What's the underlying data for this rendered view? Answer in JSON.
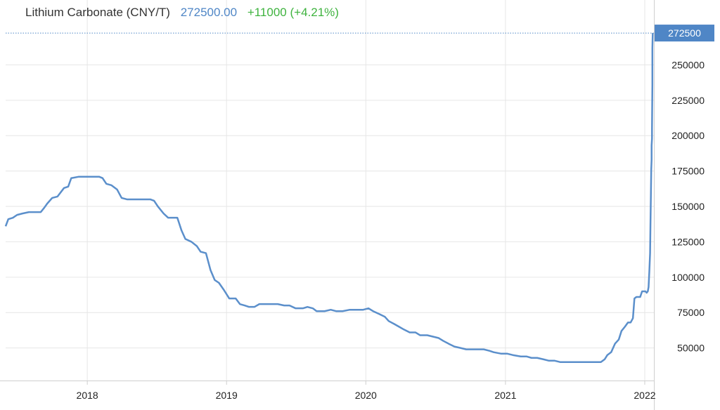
{
  "header": {
    "title": "Lithium Carbonate (CNY/T)",
    "price": "272500.00",
    "change": "+11000 (+4.21%)"
  },
  "colors": {
    "line": "#5b8fcb",
    "price": "#4f86c6",
    "change": "#3fb33f",
    "badge": "#4f86c6",
    "grid": "#e6e6e6"
  },
  "chart_data": {
    "type": "line",
    "title": "Lithium Carbonate (CNY/T)",
    "xlabel": "",
    "ylabel": "",
    "ylim": [
      27000,
      277000
    ],
    "xlim": [
      "2017-06-01",
      "2022-01-25"
    ],
    "grid": true,
    "y_axis_side": "right",
    "last_value_label": "272500",
    "x_ticks": [
      "2018",
      "2019",
      "2020",
      "2021",
      "2022"
    ],
    "x_tick_dates": [
      "2018-01-01",
      "2019-01-01",
      "2020-01-01",
      "2021-01-01",
      "2022-01-01"
    ],
    "y_ticks": [
      50000,
      75000,
      100000,
      125000,
      150000,
      175000,
      200000,
      225000,
      250000
    ],
    "series": [
      {
        "points": [
          [
            "2017-06-01",
            136000
          ],
          [
            "2017-06-08",
            141000
          ],
          [
            "2017-06-20",
            142000
          ],
          [
            "2017-07-01",
            144000
          ],
          [
            "2017-07-15",
            145000
          ],
          [
            "2017-08-01",
            146000
          ],
          [
            "2017-08-20",
            146000
          ],
          [
            "2017-09-01",
            146000
          ],
          [
            "2017-09-10",
            149000
          ],
          [
            "2017-09-18",
            152000
          ],
          [
            "2017-10-01",
            156000
          ],
          [
            "2017-10-15",
            157000
          ],
          [
            "2017-11-01",
            163000
          ],
          [
            "2017-11-12",
            164000
          ],
          [
            "2017-11-20",
            170000
          ],
          [
            "2017-12-10",
            171000
          ],
          [
            "2018-01-10",
            171000
          ],
          [
            "2018-02-01",
            171000
          ],
          [
            "2018-02-10",
            170000
          ],
          [
            "2018-02-20",
            166000
          ],
          [
            "2018-03-05",
            165000
          ],
          [
            "2018-03-20",
            162000
          ],
          [
            "2018-04-01",
            156000
          ],
          [
            "2018-04-15",
            155000
          ],
          [
            "2018-05-15",
            155000
          ],
          [
            "2018-06-15",
            155000
          ],
          [
            "2018-06-25",
            154000
          ],
          [
            "2018-07-05",
            150000
          ],
          [
            "2018-07-20",
            145000
          ],
          [
            "2018-08-01",
            142000
          ],
          [
            "2018-08-25",
            142000
          ],
          [
            "2018-09-05",
            133000
          ],
          [
            "2018-09-15",
            127000
          ],
          [
            "2018-10-01",
            125000
          ],
          [
            "2018-10-15",
            122000
          ],
          [
            "2018-10-25",
            118000
          ],
          [
            "2018-11-08",
            117000
          ],
          [
            "2018-11-20",
            105000
          ],
          [
            "2018-12-01",
            98000
          ],
          [
            "2018-12-12",
            96000
          ],
          [
            "2018-12-25",
            91000
          ],
          [
            "2019-01-08",
            85000
          ],
          [
            "2019-01-25",
            85000
          ],
          [
            "2019-02-05",
            81000
          ],
          [
            "2019-02-18",
            80000
          ],
          [
            "2019-03-01",
            79000
          ],
          [
            "2019-03-15",
            79000
          ],
          [
            "2019-03-28",
            81000
          ],
          [
            "2019-05-15",
            81000
          ],
          [
            "2019-06-01",
            80000
          ],
          [
            "2019-06-15",
            80000
          ],
          [
            "2019-07-01",
            78000
          ],
          [
            "2019-07-20",
            78000
          ],
          [
            "2019-08-01",
            79000
          ],
          [
            "2019-08-15",
            78000
          ],
          [
            "2019-08-25",
            76000
          ],
          [
            "2019-09-15",
            76000
          ],
          [
            "2019-10-01",
            77000
          ],
          [
            "2019-10-15",
            76000
          ],
          [
            "2019-11-01",
            76000
          ],
          [
            "2019-11-20",
            77000
          ],
          [
            "2019-12-10",
            77000
          ],
          [
            "2019-12-25",
            77000
          ],
          [
            "2020-01-08",
            78000
          ],
          [
            "2020-01-20",
            76000
          ],
          [
            "2020-02-05",
            74000
          ],
          [
            "2020-02-20",
            72000
          ],
          [
            "2020-03-01",
            69000
          ],
          [
            "2020-03-15",
            67000
          ],
          [
            "2020-03-28",
            65000
          ],
          [
            "2020-04-10",
            63000
          ],
          [
            "2020-04-25",
            61000
          ],
          [
            "2020-05-10",
            61000
          ],
          [
            "2020-05-22",
            59000
          ],
          [
            "2020-06-10",
            59000
          ],
          [
            "2020-06-25",
            58000
          ],
          [
            "2020-07-10",
            57000
          ],
          [
            "2020-07-22",
            55000
          ],
          [
            "2020-08-05",
            53000
          ],
          [
            "2020-08-20",
            51000
          ],
          [
            "2020-09-05",
            50000
          ],
          [
            "2020-09-20",
            49000
          ],
          [
            "2020-10-15",
            49000
          ],
          [
            "2020-11-05",
            49000
          ],
          [
            "2020-11-20",
            48000
          ],
          [
            "2020-12-01",
            47000
          ],
          [
            "2020-12-20",
            46000
          ],
          [
            "2021-01-05",
            46000
          ],
          [
            "2021-01-20",
            45000
          ],
          [
            "2021-02-10",
            44000
          ],
          [
            "2021-02-25",
            44000
          ],
          [
            "2021-03-10",
            43000
          ],
          [
            "2021-03-25",
            43000
          ],
          [
            "2021-04-10",
            42000
          ],
          [
            "2021-04-25",
            41000
          ],
          [
            "2021-05-10",
            41000
          ],
          [
            "2021-05-25",
            40000
          ],
          [
            "2021-06-15",
            40000
          ],
          [
            "2021-07-01",
            40000
          ],
          [
            "2021-07-20",
            40000
          ],
          [
            "2021-08-01",
            40000
          ],
          [
            "2021-08-10",
            40000
          ],
          [
            "2021-08-17",
            40000
          ],
          [
            "2021-08-25",
            40000
          ],
          [
            "2021-09-01",
            40000
          ],
          [
            "2021-09-08",
            40000
          ],
          [
            "2021-09-18",
            42000
          ],
          [
            "2021-09-25",
            45000
          ],
          [
            "2021-10-05",
            47000
          ],
          [
            "2021-10-15",
            53000
          ],
          [
            "2021-10-25",
            56000
          ],
          [
            "2021-11-01",
            62000
          ],
          [
            "2021-11-10",
            65000
          ],
          [
            "2021-11-18",
            68000
          ],
          [
            "2021-11-25",
            68000
          ],
          [
            "2021-12-01",
            71000
          ],
          [
            "2021-12-05",
            85000
          ],
          [
            "2021-12-10",
            86000
          ],
          [
            "2021-12-20",
            86000
          ],
          [
            "2021-12-25",
            90000
          ],
          [
            "2021-12-30",
            90000
          ],
          [
            "2022-01-03",
            90000
          ],
          [
            "2022-01-06",
            89000
          ],
          [
            "2022-01-09",
            90000
          ],
          [
            "2022-01-11",
            93000
          ],
          [
            "2022-01-13",
            104000
          ],
          [
            "2022-01-15",
            117000
          ],
          [
            "2022-01-16",
            138000
          ],
          [
            "2022-01-17",
            156000
          ],
          [
            "2022-01-18",
            176000
          ],
          [
            "2022-01-19",
            183000
          ],
          [
            "2022-01-19",
            193000
          ],
          [
            "2022-01-20",
            198000
          ],
          [
            "2022-01-20",
            205000
          ],
          [
            "2022-01-21",
            236000
          ],
          [
            "2022-01-21",
            262000
          ],
          [
            "2022-01-22",
            272500
          ]
        ]
      }
    ]
  }
}
